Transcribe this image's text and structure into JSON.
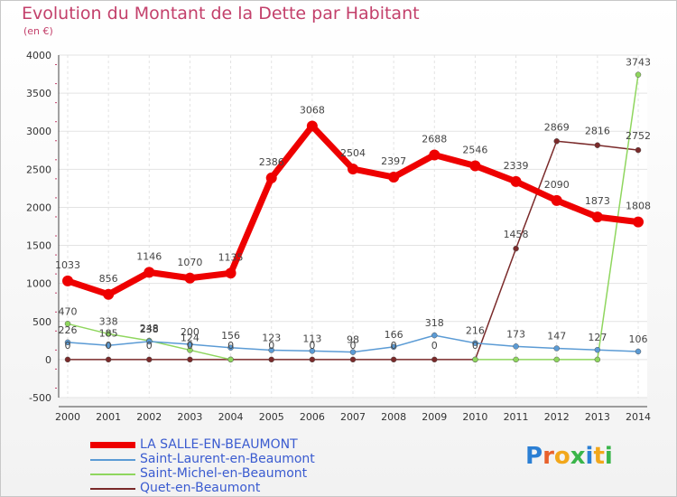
{
  "title": "Evolution du Montant de la Dette par Habitant",
  "subtitle": "(en €)",
  "logo": {
    "letters": [
      "P",
      "r",
      "o",
      "x",
      "i",
      "t",
      "i"
    ],
    "colors": [
      "#2b7fd4",
      "#e8612c",
      "#f2a71b",
      "#3ab54a",
      "#2b7fd4",
      "#f2a71b",
      "#3ab54a"
    ]
  },
  "chart_data": {
    "type": "line",
    "x": [
      2000,
      2001,
      2002,
      2003,
      2004,
      2005,
      2006,
      2007,
      2008,
      2009,
      2010,
      2011,
      2012,
      2013,
      2014
    ],
    "ylim": [
      -500,
      4000
    ],
    "yticks": [
      -500,
      0,
      500,
      1000,
      1500,
      2000,
      2500,
      3000,
      3500,
      4000
    ],
    "grid": true,
    "legend_position": "bottom-left",
    "series": [
      {
        "name": "LA SALLE-EN-BEAUMONT",
        "color": "#ee0000",
        "width": 7,
        "values": [
          1033,
          856,
          1146,
          1070,
          1135,
          2386,
          3068,
          2504,
          2397,
          2688,
          2546,
          2339,
          2090,
          1873,
          1808
        ],
        "labels": [
          "1033",
          "856",
          "1146",
          "1070",
          "1135",
          "2386",
          "3068",
          "2504",
          "2397",
          "2688",
          "2546",
          "2339",
          "2090",
          "1873",
          "1808"
        ]
      },
      {
        "name": "Saint-Laurent-en-Beaumont",
        "color": "#5b9bd5",
        "width": 1.5,
        "values": [
          226,
          185,
          238,
          200,
          156,
          123,
          113,
          98,
          166,
          318,
          216,
          173,
          147,
          127,
          106
        ],
        "labels": [
          "226",
          "185",
          "238",
          "200",
          "156",
          "123",
          "113",
          "98",
          "166",
          "318",
          "216",
          "173",
          "147",
          "127",
          "106"
        ]
      },
      {
        "name": "Saint-Michel-en-Beaumont",
        "color": "#8fd65e",
        "width": 1.5,
        "values": [
          470,
          338,
          248,
          124,
          0,
          null,
          null,
          null,
          null,
          null,
          0,
          0,
          0,
          0,
          3743
        ],
        "labels": [
          "470",
          "338",
          "248",
          "124",
          "",
          "",
          "",
          "",
          "",
          "",
          "",
          "",
          "",
          "",
          "3743"
        ]
      },
      {
        "name": "Quet-en-Beaumont",
        "color": "#7a2a2a",
        "width": 1.5,
        "values": [
          0,
          0,
          0,
          0,
          0,
          0,
          0,
          0,
          0,
          0,
          0,
          1458,
          2869,
          2816,
          2752
        ],
        "labels": [
          "0",
          "0",
          "0",
          "0",
          "0",
          "0",
          "0",
          "0",
          "0",
          "0",
          "0",
          "1458",
          "2869",
          "2816",
          "2752"
        ]
      }
    ]
  }
}
